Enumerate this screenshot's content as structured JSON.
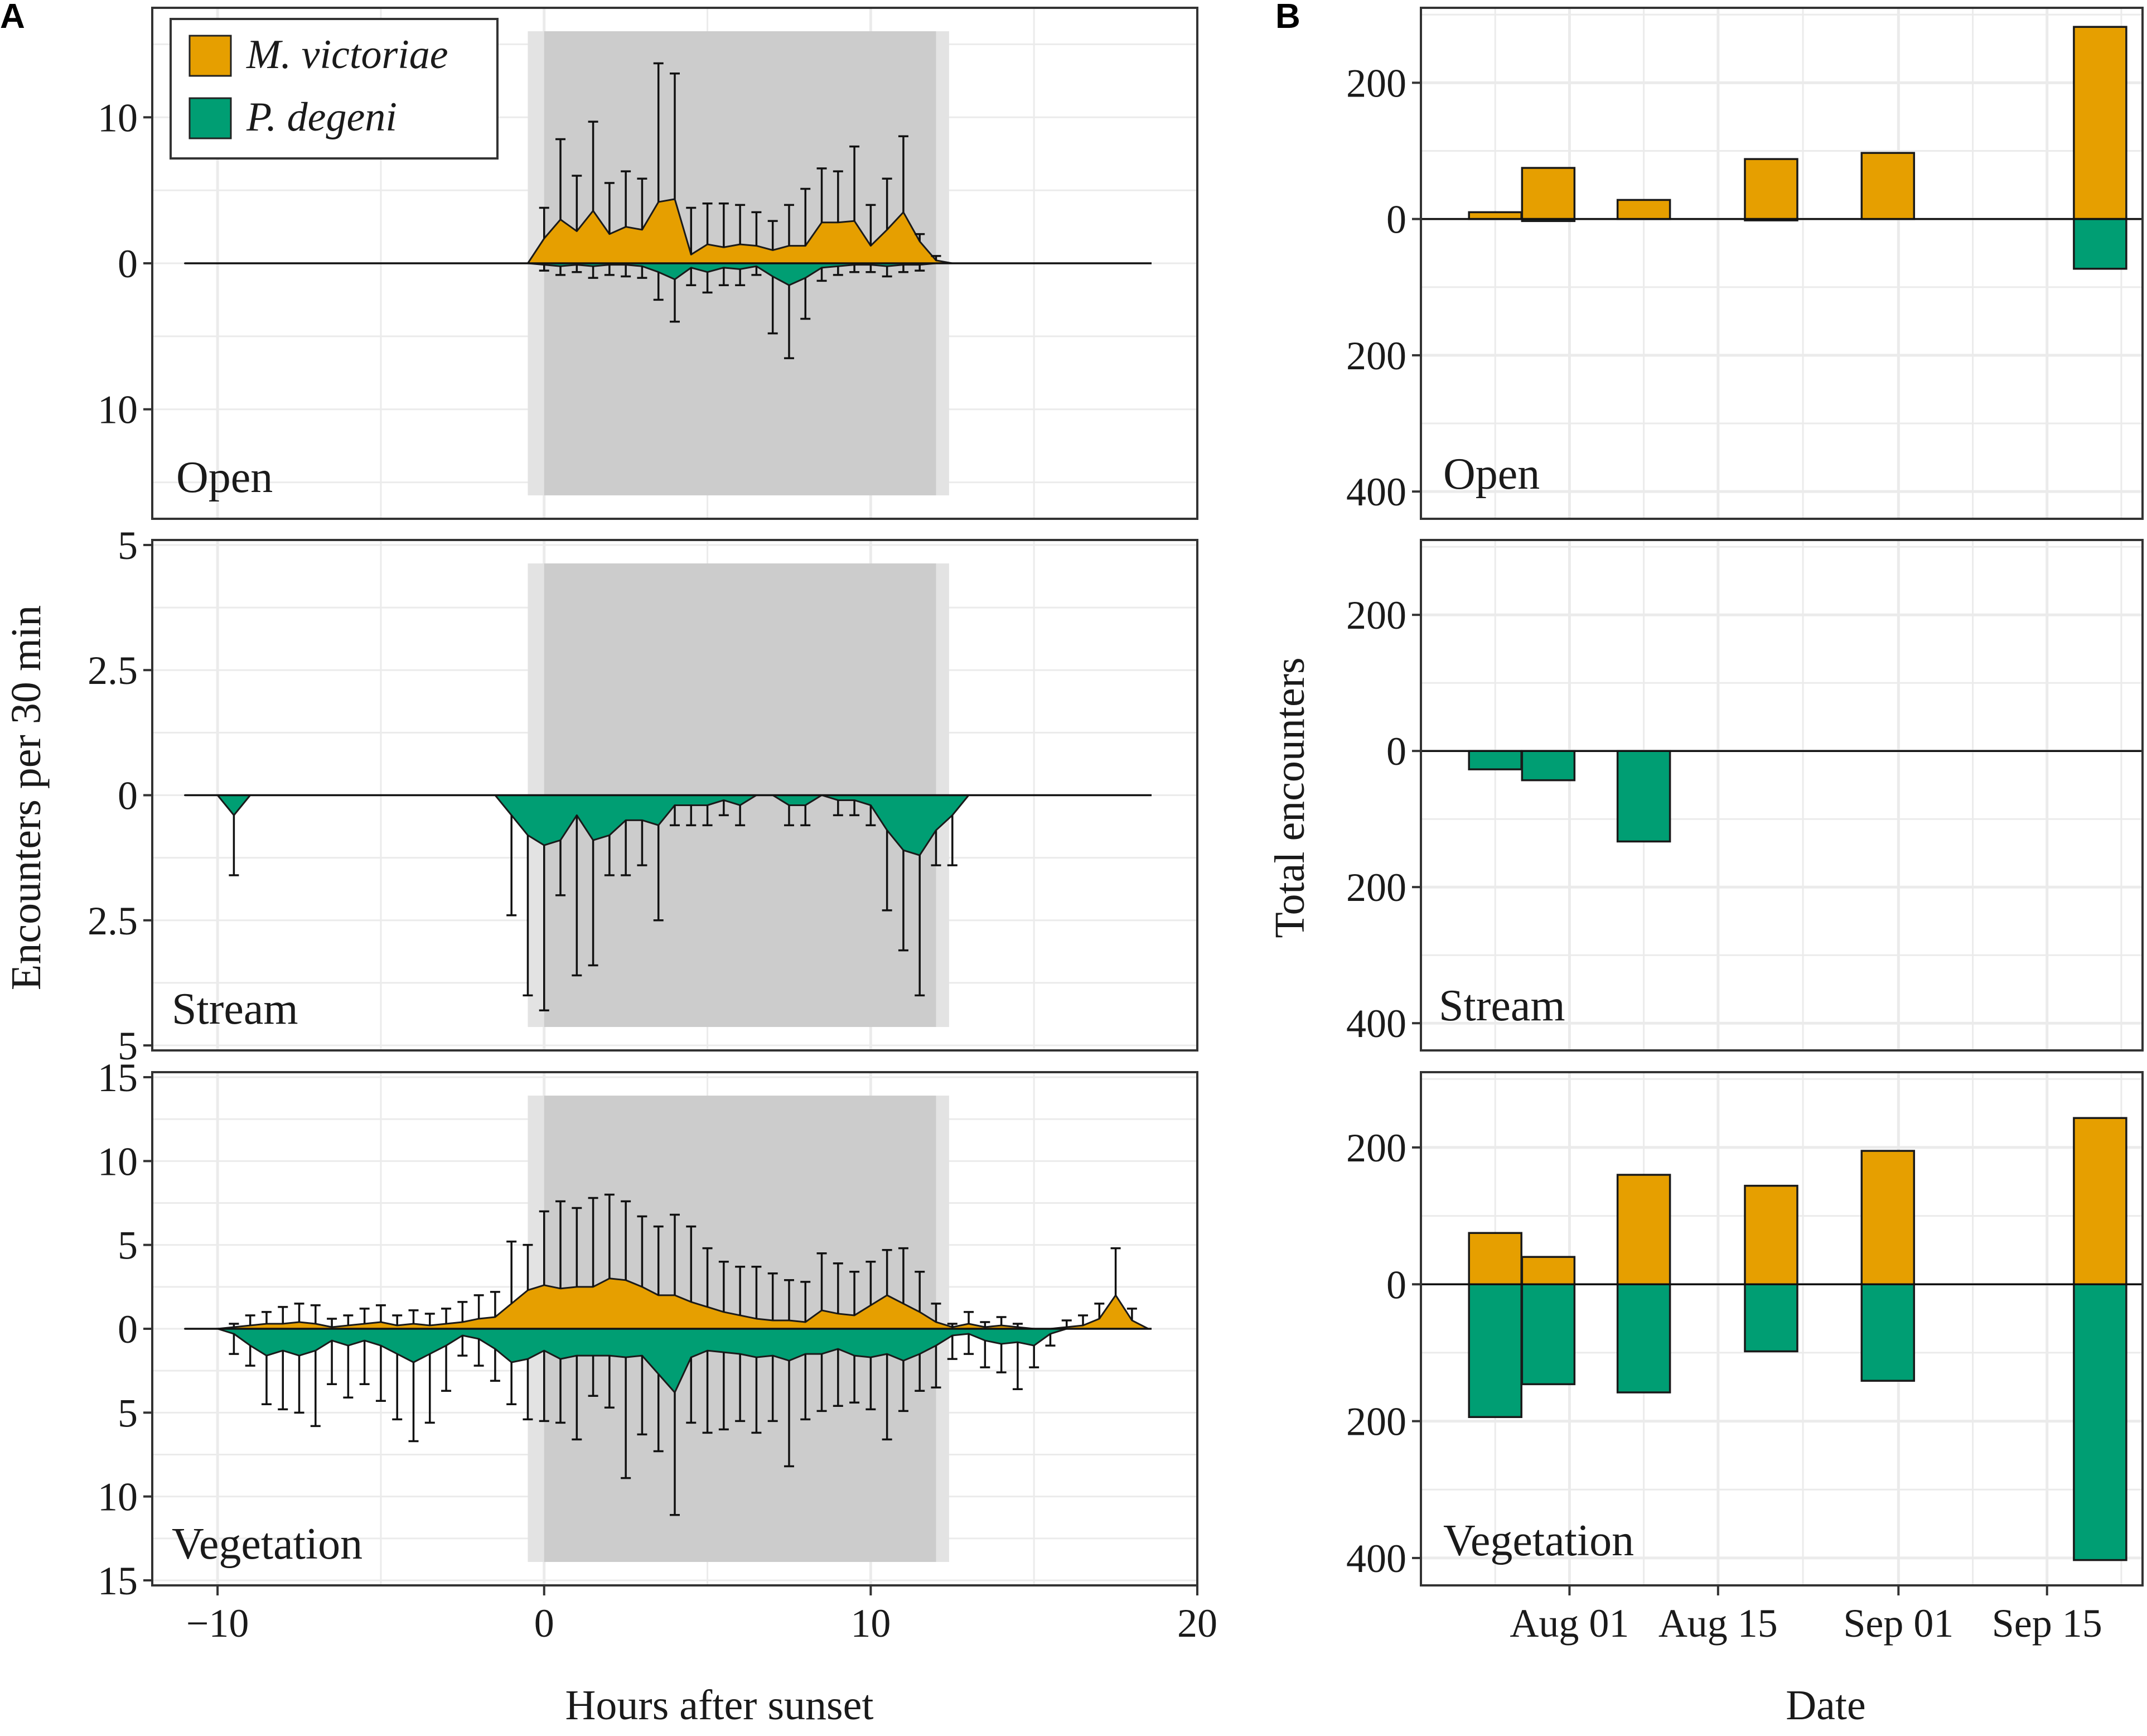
{
  "figure": {
    "panel_labels": [
      "A",
      "B"
    ]
  },
  "colors": {
    "m_victoriae": "#E69F00",
    "p_degeni": "#009E73",
    "night_outer": "#E3E3E3",
    "night_inner": "#CCCCCC",
    "grid": "#EBEBEB"
  },
  "legend": {
    "items": [
      {
        "label": "M. victoriae",
        "color": "#E69F00"
      },
      {
        "label": "P. degeni",
        "color": "#009E73"
      }
    ]
  },
  "panel_a": {
    "ylabel": "Encounters per 30 min",
    "xlabel": "Hours after sunset",
    "x_ticks": [
      -10,
      0,
      10,
      20
    ],
    "x_tick_labels": [
      "−10",
      "0",
      "10",
      "20"
    ],
    "xlim": [
      -12.0,
      20.0
    ],
    "night_band_outer": [
      -0.5,
      12.4
    ],
    "night_band_inner": [
      0.0,
      12.0
    ]
  },
  "panel_b": {
    "ylabel": "Total encounters",
    "xlabel": "Date",
    "x_ticks": [
      4,
      18,
      35,
      49
    ],
    "x_tick_labels": [
      "Aug 01",
      "Aug 15",
      "Sep 01",
      "Sep 15"
    ],
    "xlim": [
      -10,
      58
    ],
    "ylim": [
      -440,
      310
    ],
    "y_ticks": [
      200,
      0,
      -200,
      -400
    ],
    "y_tick_labels": [
      "200",
      "0",
      "200",
      "400"
    ]
  },
  "chart_data": [
    {
      "type": "area",
      "panel": "A",
      "habitat": "Open",
      "ylim": [
        -17.5,
        17.5
      ],
      "y_ticks": [
        10,
        0,
        -10
      ],
      "y_tick_labels": [
        "10",
        "0",
        "10"
      ],
      "x": [
        -11,
        -10,
        -9,
        -8,
        -7,
        -6,
        -5,
        -4,
        -3,
        -2,
        -1,
        -0.5,
        0,
        0.5,
        1,
        1.5,
        2,
        2.5,
        3,
        3.5,
        4,
        4.5,
        5,
        5.5,
        6,
        6.5,
        7,
        7.5,
        8,
        8.5,
        9,
        9.5,
        10,
        10.5,
        11,
        11.5,
        12,
        12.5,
        13,
        14,
        15,
        16,
        17,
        18,
        18.5
      ],
      "series": [
        {
          "name": "M. victoriae",
          "direction": "up",
          "values": [
            0,
            0,
            0,
            0,
            0,
            0,
            0,
            0,
            0,
            0,
            0,
            0,
            1.7,
            3.0,
            2.2,
            3.6,
            2.0,
            2.5,
            2.3,
            4.2,
            4.4,
            0.6,
            1.3,
            1.1,
            1.3,
            1.2,
            0.9,
            1.2,
            1.2,
            2.8,
            2.8,
            2.9,
            1.2,
            2.3,
            3.5,
            1.5,
            0.2,
            0,
            0,
            0,
            0,
            0,
            0,
            0,
            0
          ],
          "err": [
            0,
            0,
            0,
            0,
            0,
            0,
            0,
            0,
            0,
            0,
            0,
            0,
            3.8,
            8.5,
            6.0,
            9.7,
            5.5,
            6.3,
            5.8,
            13.7,
            13.0,
            3.8,
            4.1,
            4.1,
            4.0,
            3.5,
            2.9,
            4.0,
            5.1,
            6.5,
            6.3,
            8.0,
            4.0,
            5.8,
            8.7,
            2.0,
            0.5,
            0,
            0,
            0,
            0,
            0,
            0,
            0,
            0
          ]
        },
        {
          "name": "P. degeni",
          "direction": "down",
          "values": [
            0,
            0,
            0,
            0,
            0,
            0,
            0,
            0,
            0,
            0,
            0,
            0,
            0.1,
            0.2,
            0.1,
            0.2,
            0.1,
            0.1,
            0.2,
            0.6,
            1.1,
            0.3,
            0.6,
            0.3,
            0.4,
            0.2,
            0.9,
            1.5,
            1.0,
            0.3,
            0.2,
            0.1,
            0.1,
            0.2,
            0.1,
            0.1,
            0,
            0,
            0,
            0,
            0,
            0,
            0,
            0,
            0
          ],
          "err": [
            0,
            0,
            0,
            0,
            0,
            0,
            0,
            0,
            0,
            0,
            0,
            0,
            0.5,
            0.8,
            0.6,
            1.0,
            0.8,
            0.9,
            1.0,
            2.5,
            4.0,
            1.5,
            2.0,
            1.5,
            1.5,
            0.8,
            4.8,
            6.5,
            3.8,
            1.2,
            0.8,
            0.6,
            0.6,
            0.9,
            0.6,
            0.5,
            0,
            0,
            0,
            0,
            0,
            0,
            0,
            0,
            0
          ]
        }
      ]
    },
    {
      "type": "area",
      "panel": "A",
      "habitat": "Stream",
      "ylim": [
        -5.1,
        5.1
      ],
      "y_ticks": [
        5,
        2.5,
        0,
        -2.5,
        -5
      ],
      "y_tick_labels": [
        "5",
        "2.5",
        "0",
        "2.5",
        "5"
      ],
      "x": [
        -11,
        -10,
        -9.5,
        -9,
        -8,
        -7,
        -6,
        -5,
        -4,
        -3,
        -2,
        -1.5,
        -1,
        -0.5,
        0,
        0.5,
        1,
        1.5,
        2,
        2.5,
        3,
        3.5,
        4,
        4.5,
        5,
        5.5,
        6,
        6.5,
        7,
        7.5,
        8,
        8.5,
        9,
        9.5,
        10,
        10.5,
        11,
        11.5,
        12,
        12.5,
        13,
        14,
        15,
        16,
        17,
        18,
        18.5
      ],
      "series": [
        {
          "name": "M. victoriae",
          "direction": "up",
          "values": [
            0,
            0,
            0,
            0,
            0,
            0,
            0,
            0,
            0,
            0,
            0,
            0,
            0,
            0,
            0,
            0,
            0,
            0,
            0,
            0,
            0,
            0,
            0,
            0,
            0,
            0,
            0,
            0,
            0,
            0,
            0,
            0,
            0,
            0,
            0,
            0,
            0,
            0,
            0,
            0,
            0,
            0,
            0,
            0,
            0,
            0,
            0
          ],
          "err": [
            0,
            0,
            0,
            0,
            0,
            0,
            0,
            0,
            0,
            0,
            0,
            0,
            0,
            0,
            0,
            0,
            0,
            0,
            0,
            0,
            0,
            0,
            0,
            0,
            0,
            0,
            0,
            0,
            0,
            0,
            0,
            0,
            0,
            0,
            0,
            0,
            0,
            0,
            0,
            0,
            0,
            0,
            0,
            0,
            0,
            0,
            0
          ]
        },
        {
          "name": "P. degeni",
          "direction": "down",
          "values": [
            0,
            0,
            0.4,
            0,
            0,
            0,
            0,
            0,
            0,
            0,
            0,
            0,
            0.4,
            0.8,
            1.0,
            0.9,
            0.4,
            0.9,
            0.8,
            0.5,
            0.5,
            0.6,
            0.2,
            0.2,
            0.2,
            0.1,
            0.2,
            0,
            0,
            0.2,
            0.2,
            0,
            0.1,
            0.1,
            0.2,
            0.7,
            1.1,
            1.2,
            0.7,
            0.4,
            0,
            0,
            0,
            0,
            0,
            0,
            0
          ],
          "err": [
            0,
            0,
            1.6,
            0,
            0,
            0,
            0,
            0,
            0,
            0,
            0,
            0,
            2.4,
            4.0,
            4.3,
            2.0,
            3.6,
            3.4,
            1.6,
            1.6,
            1.4,
            2.5,
            0.6,
            0.6,
            0.6,
            0.4,
            0.6,
            0,
            0,
            0.6,
            0.6,
            0,
            0.4,
            0.4,
            0.6,
            2.3,
            3.1,
            4.0,
            1.4,
            1.4,
            0,
            0,
            0,
            0,
            0,
            0,
            0
          ]
        }
      ]
    },
    {
      "type": "area",
      "panel": "A",
      "habitat": "Vegetation",
      "ylim": [
        -15.3,
        15.3
      ],
      "y_ticks": [
        15,
        10,
        5,
        0,
        -5,
        -10,
        -15
      ],
      "y_tick_labels": [
        "15",
        "10",
        "5",
        "0",
        "5",
        "10",
        "15"
      ],
      "x": [
        -11,
        -10,
        -9.5,
        -9,
        -8.5,
        -8,
        -7.5,
        -7,
        -6.5,
        -6,
        -5.5,
        -5,
        -4.5,
        -4,
        -3.5,
        -3,
        -2.5,
        -2,
        -1.5,
        -1,
        -0.5,
        0,
        0.5,
        1,
        1.5,
        2,
        2.5,
        3,
        3.5,
        4,
        4.5,
        5,
        5.5,
        6,
        6.5,
        7,
        7.5,
        8,
        8.5,
        9,
        9.5,
        10,
        10.5,
        11,
        11.5,
        12,
        12.5,
        13,
        13.5,
        14,
        14.5,
        15,
        15.5,
        16,
        16.5,
        17,
        17.5,
        18,
        18.5
      ],
      "series": [
        {
          "name": "M. victoriae",
          "direction": "up",
          "values": [
            0,
            0,
            0.1,
            0.2,
            0.3,
            0.3,
            0.4,
            0.3,
            0.1,
            0.2,
            0.3,
            0.4,
            0.2,
            0.3,
            0.2,
            0.3,
            0.4,
            0.6,
            0.7,
            1.5,
            2.3,
            2.6,
            2.4,
            2.5,
            2.5,
            3.0,
            2.9,
            2.5,
            2.0,
            2.0,
            1.6,
            1.3,
            1.0,
            0.8,
            0.6,
            0.5,
            0.5,
            0.4,
            1.1,
            0.9,
            0.8,
            1.4,
            2.0,
            1.5,
            1.0,
            0.4,
            0.1,
            0.3,
            0.1,
            0.2,
            0.1,
            0,
            0,
            0.1,
            0.2,
            0.6,
            2.0,
            0.5,
            0
          ],
          "err": [
            0,
            0,
            0.3,
            0.8,
            1.0,
            1.3,
            1.5,
            1.4,
            0.6,
            0.8,
            1.2,
            1.4,
            0.8,
            1.1,
            0.9,
            1.2,
            1.6,
            2.0,
            2.2,
            5.2,
            5.0,
            7.0,
            7.6,
            7.2,
            7.8,
            8.0,
            7.6,
            6.7,
            6.1,
            6.8,
            6.1,
            4.8,
            4.0,
            3.7,
            3.7,
            3.3,
            2.9,
            2.8,
            4.5,
            3.9,
            3.4,
            4.0,
            4.7,
            4.8,
            3.4,
            1.5,
            0.3,
            1.0,
            0.4,
            0.7,
            0.3,
            0,
            0,
            0.5,
            0.8,
            1.5,
            4.8,
            1.2,
            0
          ]
        },
        {
          "name": "P. degeni",
          "direction": "down",
          "values": [
            0,
            0,
            0.3,
            1.0,
            1.6,
            1.3,
            1.6,
            1.3,
            0.7,
            1.0,
            0.7,
            1.0,
            1.5,
            2.0,
            1.5,
            1.0,
            0.4,
            0.6,
            1.2,
            2.0,
            1.8,
            1.3,
            1.8,
            1.6,
            1.6,
            1.6,
            1.7,
            1.6,
            2.7,
            3.8,
            1.7,
            1.3,
            1.4,
            1.5,
            1.7,
            1.6,
            1.9,
            1.5,
            1.5,
            1.2,
            1.6,
            1.7,
            1.5,
            1.9,
            1.5,
            1.0,
            0.4,
            0.3,
            0.7,
            0.9,
            0.8,
            1.0,
            0.3,
            0,
            0,
            0,
            0,
            0,
            0
          ],
          "err": [
            0,
            0,
            1.5,
            2.2,
            4.5,
            4.8,
            5.0,
            5.8,
            3.3,
            4.1,
            3.3,
            4.3,
            5.4,
            6.7,
            5.6,
            3.7,
            1.6,
            2.2,
            3.1,
            4.5,
            5.4,
            5.5,
            5.6,
            6.6,
            4.0,
            4.7,
            8.9,
            6.3,
            7.3,
            11.1,
            5.6,
            6.2,
            6.0,
            5.5,
            6.2,
            5.5,
            8.2,
            5.4,
            4.9,
            4.6,
            4.4,
            4.8,
            6.6,
            4.9,
            3.7,
            3.5,
            1.8,
            1.5,
            2.3,
            2.6,
            3.6,
            2.3,
            1.0,
            0,
            0,
            0,
            0,
            0,
            0
          ]
        }
      ]
    },
    {
      "type": "bar",
      "panel": "B",
      "habitat": "Open",
      "dates": [
        "Jul 24",
        "Jul 29",
        "Aug 07",
        "Aug 19",
        "Aug 30",
        "Sep 19"
      ],
      "x": [
        -3,
        2,
        11,
        23,
        34,
        54
      ],
      "series": [
        {
          "name": "M. victoriae",
          "direction": "up",
          "values": [
            10,
            75,
            28,
            88,
            97,
            282
          ]
        },
        {
          "name": "P. degeni",
          "direction": "down",
          "values": [
            0,
            3,
            0,
            2,
            0,
            73
          ]
        }
      ]
    },
    {
      "type": "bar",
      "panel": "B",
      "habitat": "Stream",
      "dates": [
        "Jul 24",
        "Jul 29",
        "Aug 07",
        "Aug 19",
        "Aug 30",
        "Sep 19"
      ],
      "x": [
        -3,
        2,
        11,
        23,
        34,
        54
      ],
      "series": [
        {
          "name": "M. victoriae",
          "direction": "up",
          "values": [
            0,
            0,
            0,
            0,
            0,
            0
          ]
        },
        {
          "name": "P. degeni",
          "direction": "down",
          "values": [
            27,
            43,
            133,
            0,
            0,
            0
          ]
        }
      ]
    },
    {
      "type": "bar",
      "panel": "B",
      "habitat": "Vegetation",
      "dates": [
        "Jul 24",
        "Jul 29",
        "Aug 07",
        "Aug 19",
        "Aug 30",
        "Sep 19"
      ],
      "x": [
        -3,
        2,
        11,
        23,
        34,
        54
      ],
      "series": [
        {
          "name": "M. victoriae",
          "direction": "up",
          "values": [
            75,
            40,
            160,
            144,
            195,
            243
          ]
        },
        {
          "name": "P. degeni",
          "direction": "down",
          "values": [
            194,
            146,
            158,
            98,
            141,
            403
          ]
        }
      ]
    }
  ]
}
